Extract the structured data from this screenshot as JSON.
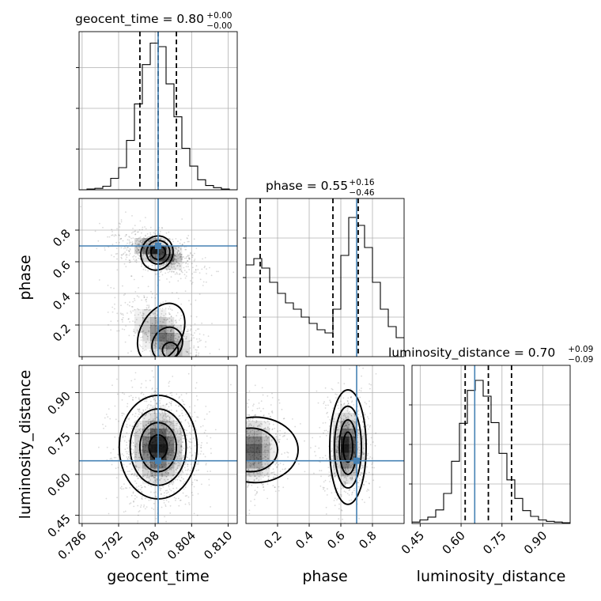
{
  "chart_data": {
    "type": "corner",
    "parameters": [
      "geocent_time",
      "phase",
      "luminosity_distance"
    ],
    "truths": {
      "geocent_time": 0.7985,
      "phase": 0.7,
      "luminosity_distance": 0.65
    },
    "colors": {
      "truth": "#4682b4",
      "density": "#000000",
      "grid": "#b0b0b0"
    },
    "grid": true,
    "diagonal": [
      {
        "name": "geocent_time",
        "title": "geocent_time = 0.80",
        "err_plus": "+0.00",
        "err_minus": "−0.00",
        "xlim": [
          0.7855,
          0.8115
        ],
        "quantiles": [
          0.7955,
          0.7985,
          0.8015
        ],
        "hist": {
          "edges": [
            0.7855,
            0.7868,
            0.7881,
            0.7894,
            0.7907,
            0.792,
            0.7933,
            0.7946,
            0.7959,
            0.7972,
            0.7985,
            0.7998,
            0.8011,
            0.8024,
            0.8037,
            0.805,
            0.8063,
            0.8076,
            0.8089,
            0.8102,
            0.8115
          ],
          "counts": [
            0,
            1,
            2,
            5,
            16,
            31,
            69,
            120,
            175,
            205,
            200,
            148,
            102,
            58,
            33,
            14,
            6,
            3,
            1,
            0
          ],
          "ymax": 210
        }
      },
      {
        "name": "phase",
        "title": "phase = 0.55",
        "err_plus": "+0.16",
        "err_minus": "−0.46",
        "xlim": [
          0.0,
          1.0
        ],
        "quantiles": [
          0.09,
          0.55,
          0.71
        ],
        "hist": {
          "edges": [
            0,
            0.05,
            0.1,
            0.15,
            0.2,
            0.25,
            0.3,
            0.35,
            0.4,
            0.45,
            0.5,
            0.55,
            0.6,
            0.65,
            0.7,
            0.75,
            0.8,
            0.85,
            0.9,
            0.95,
            1.0
          ],
          "counts": [
            58,
            62,
            56,
            47,
            40,
            34,
            30,
            25,
            21,
            17,
            15,
            30,
            64,
            88,
            83,
            69,
            47,
            30,
            19,
            12
          ],
          "ymax": 95
        }
      },
      {
        "name": "luminosity_distance",
        "title": "luminosity_distance = 0.70",
        "err_plus": "+0.09",
        "err_minus": "−0.09",
        "xlim": [
          0.42,
          1.0
        ],
        "quantiles": [
          0.615,
          0.7,
          0.785
        ],
        "hist": {
          "edges": [
            0.42,
            0.449,
            0.478,
            0.507,
            0.536,
            0.565,
            0.594,
            0.623,
            0.652,
            0.681,
            0.71,
            0.739,
            0.768,
            0.797,
            0.826,
            0.855,
            0.884,
            0.913,
            0.942,
            0.971,
            1.0
          ],
          "counts": [
            2,
            5,
            9,
            19,
            42,
            87,
            140,
            186,
            200,
            178,
            141,
            98,
            61,
            35,
            18,
            10,
            5,
            3,
            2,
            1
          ],
          "ymax": 210
        }
      }
    ],
    "offdiagonal": [
      {
        "x": "geocent_time",
        "y": "phase",
        "xlim": [
          0.7855,
          0.8115
        ],
        "ylim": [
          0.0,
          1.0
        ],
        "modes": [
          {
            "x": 0.7985,
            "y": 0.66,
            "sx": 0.0022,
            "sy": 0.05,
            "rho": -0.5,
            "w": 1.0
          },
          {
            "x": 0.7995,
            "y": 0.12,
            "sx": 0.0025,
            "sy": 0.1,
            "rho": -0.55,
            "w": 0.7
          }
        ],
        "contours": [
          {
            "level": 1,
            "mode": 0,
            "cx": 0.7983,
            "cy": 0.655,
            "rx": 0.0026,
            "ry": 0.11,
            "rot": -0.45
          },
          {
            "level": 2,
            "mode": 0,
            "cx": 0.7985,
            "cy": 0.66,
            "rx": 0.0019,
            "ry": 0.075,
            "rot": -0.45
          },
          {
            "level": 3,
            "mode": 0,
            "cx": 0.7985,
            "cy": 0.66,
            "rx": 0.0012,
            "ry": 0.045,
            "rot": -0.45
          },
          {
            "level": 1,
            "mode": 1,
            "cx": 0.799,
            "cy": 0.15,
            "rx": 0.0034,
            "ry": 0.2,
            "rot": -0.5
          },
          {
            "level": 2,
            "mode": 1,
            "cx": 0.8,
            "cy": 0.08,
            "rx": 0.0024,
            "ry": 0.11,
            "rot": -0.5
          },
          {
            "level": 3,
            "mode": 1,
            "cx": 0.8005,
            "cy": 0.04,
            "rx": 0.0013,
            "ry": 0.05,
            "rot": -0.5
          }
        ]
      },
      {
        "x": "geocent_time",
        "y": "luminosity_distance",
        "xlim": [
          0.7855,
          0.8115
        ],
        "ylim": [
          0.42,
          1.0
        ],
        "modes": [
          {
            "x": 0.7985,
            "y": 0.7,
            "sx": 0.0022,
            "sy": 0.07,
            "rho": 0.0,
            "w": 1.0
          }
        ],
        "contours": [
          {
            "level": 1,
            "mode": 0,
            "cx": 0.7985,
            "cy": 0.7,
            "rx": 0.0064,
            "ry": 0.19,
            "rot": 0
          },
          {
            "level": 2,
            "mode": 0,
            "cx": 0.7985,
            "cy": 0.7,
            "rx": 0.0046,
            "ry": 0.14,
            "rot": 0
          },
          {
            "level": 3,
            "mode": 0,
            "cx": 0.7985,
            "cy": 0.7,
            "rx": 0.003,
            "ry": 0.09,
            "rot": 0
          },
          {
            "level": 4,
            "mode": 0,
            "cx": 0.7985,
            "cy": 0.7,
            "rx": 0.0015,
            "ry": 0.045,
            "rot": 0
          }
        ]
      },
      {
        "x": "phase",
        "y": "luminosity_distance",
        "xlim": [
          0.0,
          1.0
        ],
        "ylim": [
          0.42,
          1.0
        ],
        "modes": [
          {
            "x": 0.05,
            "y": 0.69,
            "sx": 0.07,
            "sy": 0.06,
            "rho": 0.0,
            "w": 0.8
          },
          {
            "x": 0.64,
            "y": 0.7,
            "sx": 0.05,
            "sy": 0.07,
            "rho": 0.0,
            "w": 1.0
          }
        ],
        "contours": [
          {
            "level": 1,
            "mode": 0,
            "cx": 0.06,
            "cy": 0.69,
            "rx": 0.27,
            "ry": 0.12,
            "rot": 0
          },
          {
            "level": 2,
            "mode": 0,
            "cx": 0.03,
            "cy": 0.69,
            "rx": 0.17,
            "ry": 0.08,
            "rot": 0
          },
          {
            "level": 1,
            "mode": 1,
            "cx": 0.645,
            "cy": 0.7,
            "rx": 0.115,
            "ry": 0.21,
            "rot": 0
          },
          {
            "level": 2,
            "mode": 1,
            "cx": 0.645,
            "cy": 0.7,
            "rx": 0.085,
            "ry": 0.15,
            "rot": 0
          },
          {
            "level": 3,
            "mode": 1,
            "cx": 0.645,
            "cy": 0.7,
            "rx": 0.055,
            "ry": 0.1,
            "rot": 0
          },
          {
            "level": 4,
            "mode": 1,
            "cx": 0.645,
            "cy": 0.7,
            "rx": 0.03,
            "ry": 0.055,
            "rot": 0
          }
        ]
      }
    ],
    "axes": {
      "geocent_time": {
        "label": "geocent_time",
        "ticks": [
          0.786,
          0.792,
          0.798,
          0.804,
          0.81
        ],
        "tick_labels": [
          "0.786",
          "0.792",
          "0.798",
          "0.804",
          "0.810"
        ]
      },
      "phase": {
        "label": "phase",
        "ticks": [
          0.2,
          0.4,
          0.6,
          0.8
        ],
        "tick_labels": [
          "0.2",
          "0.4",
          "0.6",
          "0.8"
        ]
      },
      "luminosity_distance": {
        "label": "luminosity_distance",
        "ticks": [
          0.45,
          0.6,
          0.75,
          0.9
        ],
        "tick_labels": [
          "0.45",
          "0.60",
          "0.75",
          "0.90"
        ]
      }
    }
  }
}
